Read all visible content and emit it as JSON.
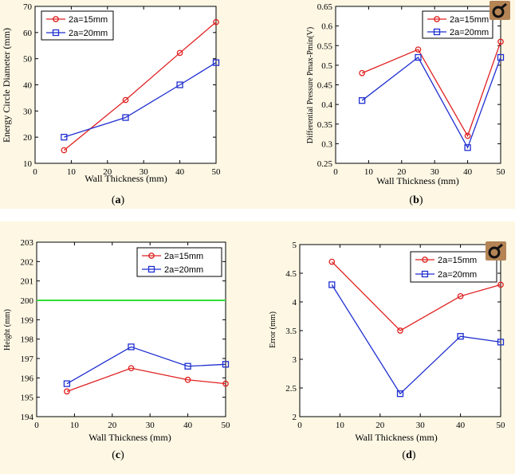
{
  "figure": {
    "captions": [
      "a",
      "b",
      "c",
      "d"
    ],
    "corner_icon_name": "magnify-zoom-icon"
  },
  "colors": {
    "series_15": "#e02020",
    "series_20": "#1f2fd0",
    "reference_line": "#33dd33",
    "icon_bg": "#b48455"
  },
  "chart_data": [
    {
      "id": "a",
      "type": "line",
      "xlabel": "Wall Thickness (mm)",
      "ylabel": "Energy Circle Diameter (mm)",
      "xlim": [
        0,
        50
      ],
      "ylim": [
        10,
        70
      ],
      "xticks": [
        0,
        10,
        20,
        30,
        40,
        50
      ],
      "yticks": [
        10,
        20,
        30,
        40,
        50,
        60,
        70
      ],
      "legend": "top-left",
      "series": [
        {
          "name": "2a=15mm",
          "marker": "circle",
          "x": [
            8,
            25,
            40,
            50
          ],
          "y": [
            15,
            34.2,
            52.2,
            64
          ]
        },
        {
          "name": "2a=20mm",
          "marker": "square",
          "x": [
            8,
            25,
            40,
            50
          ],
          "y": [
            20,
            27.5,
            40,
            48.5
          ]
        }
      ]
    },
    {
      "id": "b",
      "type": "line",
      "xlabel": "Wall Thickness (mm)",
      "ylabel": "Differential Pressure Pmax-Pmin(V)",
      "xlim": [
        0,
        50
      ],
      "ylim": [
        0.25,
        0.65
      ],
      "xticks": [
        0,
        10,
        20,
        30,
        40,
        50
      ],
      "yticks": [
        0.25,
        0.3,
        0.35,
        0.4,
        0.45,
        0.5,
        0.55,
        0.6,
        0.65
      ],
      "ytick_labels": [
        "0.25",
        "0.3",
        "0.35",
        "0.4",
        "0.45",
        "0.5",
        "0.55",
        "0.6",
        "0.65"
      ],
      "legend": "top-right",
      "series": [
        {
          "name": "2a=15mm",
          "marker": "circle",
          "x": [
            8,
            25,
            40,
            50
          ],
          "y": [
            0.48,
            0.54,
            0.32,
            0.56
          ]
        },
        {
          "name": "2a=20mm",
          "marker": "square",
          "x": [
            8,
            25,
            40,
            50
          ],
          "y": [
            0.41,
            0.52,
            0.29,
            0.52
          ]
        }
      ]
    },
    {
      "id": "c",
      "type": "line",
      "xlabel": "Wall Thickness (mm)",
      "ylabel": "Height (mm)",
      "xlim": [
        0,
        50
      ],
      "ylim": [
        194,
        203
      ],
      "xticks": [
        0,
        10,
        20,
        30,
        40,
        50
      ],
      "yticks": [
        194,
        195,
        196,
        197,
        198,
        199,
        200,
        201,
        202,
        203
      ],
      "legend": "top-right",
      "reference_y": 200,
      "series": [
        {
          "name": "2a=15mm",
          "marker": "circle",
          "x": [
            8,
            25,
            40,
            50
          ],
          "y": [
            195.3,
            196.5,
            195.9,
            195.7
          ]
        },
        {
          "name": "2a=20mm",
          "marker": "square",
          "x": [
            8,
            25,
            40,
            50
          ],
          "y": [
            195.7,
            197.6,
            196.6,
            196.7
          ]
        }
      ]
    },
    {
      "id": "d",
      "type": "line",
      "xlabel": "Wall Thickness (mm)",
      "ylabel": "Error (mm)",
      "xlim": [
        0,
        50
      ],
      "ylim": [
        2,
        5
      ],
      "xticks": [
        0,
        10,
        20,
        30,
        40,
        50
      ],
      "yticks": [
        2,
        2.5,
        3,
        3.5,
        4,
        4.5,
        5
      ],
      "ytick_labels": [
        "2",
        "2.5",
        "3",
        "3.5",
        "4",
        "4.5",
        "5"
      ],
      "legend": "top-right",
      "series": [
        {
          "name": "2a=15mm",
          "marker": "circle",
          "x": [
            8,
            25,
            40,
            50
          ],
          "y": [
            4.7,
            3.5,
            4.1,
            4.3
          ]
        },
        {
          "name": "2a=20mm",
          "marker": "square",
          "x": [
            8,
            25,
            40,
            50
          ],
          "y": [
            4.3,
            2.4,
            3.4,
            3.3
          ]
        }
      ]
    }
  ]
}
